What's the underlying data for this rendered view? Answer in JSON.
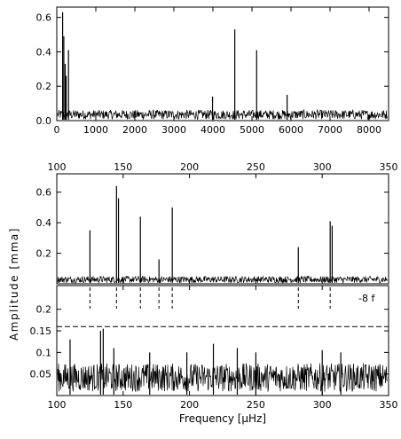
{
  "figure": {
    "ylabel": "Amplitude   [mma]",
    "xlabel": "Frequency [μHz]"
  },
  "chart_data": [
    {
      "type": "line",
      "panel": "overview",
      "xlim": [
        0,
        8500
      ],
      "ylim": [
        0,
        0.66
      ],
      "xticks": [
        0,
        1000,
        2000,
        3000,
        4000,
        5000,
        6000,
        7000,
        8000
      ],
      "yticks": [
        0.0,
        0.2,
        0.4,
        0.6
      ],
      "ytick_labels": [
        "0.0",
        "0.2",
        "0.4",
        "0.6"
      ],
      "noise_level": 0.05,
      "peaks": [
        {
          "x": 150,
          "y": 0.63
        },
        {
          "x": 180,
          "y": 0.49
        },
        {
          "x": 215,
          "y": 0.33
        },
        {
          "x": 240,
          "y": 0.26
        },
        {
          "x": 300,
          "y": 0.41
        },
        {
          "x": 4560,
          "y": 0.53
        },
        {
          "x": 5120,
          "y": 0.41
        },
        {
          "x": 3990,
          "y": 0.14
        },
        {
          "x": 5900,
          "y": 0.15
        }
      ]
    },
    {
      "type": "line",
      "panel": "zoom",
      "xlim": [
        100,
        350
      ],
      "ylim": [
        0,
        0.72
      ],
      "xticks": [
        100,
        150,
        200,
        250,
        300,
        350
      ],
      "yticks": [
        0.2,
        0.4,
        0.6
      ],
      "ytick_labels": [
        "0.2",
        "0.4",
        "0.6"
      ],
      "noise_level": 0.04,
      "peaks": [
        {
          "x": 125,
          "y": 0.35
        },
        {
          "x": 145,
          "y": 0.64
        },
        {
          "x": 146.5,
          "y": 0.56
        },
        {
          "x": 163,
          "y": 0.44
        },
        {
          "x": 177,
          "y": 0.16
        },
        {
          "x": 187,
          "y": 0.5
        },
        {
          "x": 282,
          "y": 0.24
        },
        {
          "x": 306,
          "y": 0.41
        },
        {
          "x": 307.5,
          "y": 0.38
        }
      ]
    },
    {
      "type": "line",
      "panel": "prewhitened",
      "xlim": [
        100,
        350
      ],
      "ylim": [
        0.0,
        0.255
      ],
      "xticks": [
        100,
        150,
        200,
        250,
        300,
        350
      ],
      "yticks": [
        0.05,
        0.1,
        0.15,
        0.2
      ],
      "ytick_labels": [
        "0.05",
        "0.1",
        "0.15",
        "0.2"
      ],
      "marked_frequencies": [
        125,
        145,
        163,
        177,
        187,
        282,
        306
      ],
      "threshold": {
        "y": 0.16,
        "label": "-8 f"
      },
      "noise_level": 0.06,
      "peaks": [
        {
          "x": 110,
          "y": 0.13
        },
        {
          "x": 133,
          "y": 0.15
        },
        {
          "x": 135,
          "y": 0.155
        },
        {
          "x": 143,
          "y": 0.11
        },
        {
          "x": 170,
          "y": 0.1
        },
        {
          "x": 198,
          "y": 0.1
        },
        {
          "x": 218,
          "y": 0.12
        },
        {
          "x": 236,
          "y": 0.11
        },
        {
          "x": 250,
          "y": 0.1
        },
        {
          "x": 300,
          "y": 0.105
        },
        {
          "x": 314,
          "y": 0.1
        }
      ]
    }
  ]
}
